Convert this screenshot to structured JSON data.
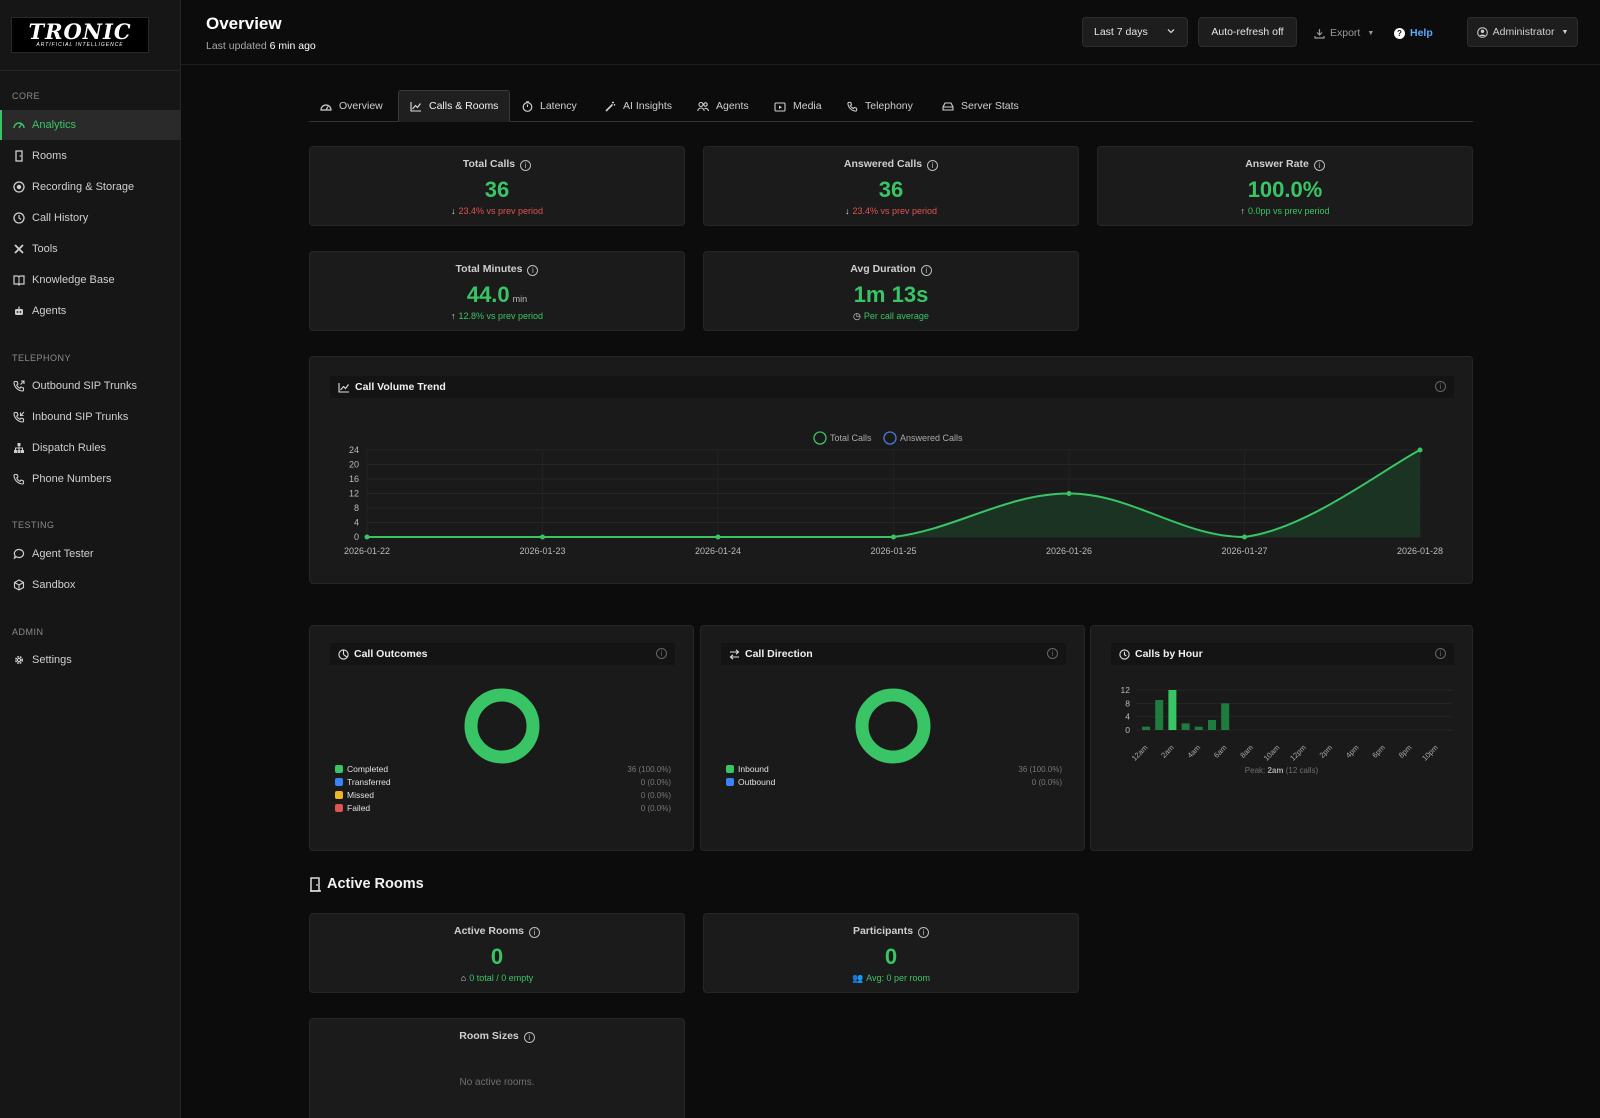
{
  "brand": {
    "logo_main": "TRONIC",
    "logo_sub": "ARTIFICIAL INTELLIGENCE"
  },
  "sidebar": {
    "sections": [
      {
        "label": "CORE",
        "items": [
          {
            "label": "Analytics",
            "icon": "dashboard-icon",
            "active": true
          },
          {
            "label": "Rooms",
            "icon": "door-icon"
          },
          {
            "label": "Recording & Storage",
            "icon": "record-icon"
          },
          {
            "label": "Call History",
            "icon": "clock-icon"
          },
          {
            "label": "Tools",
            "icon": "tools-icon"
          },
          {
            "label": "Knowledge Base",
            "icon": "book-icon"
          },
          {
            "label": "Agents",
            "icon": "robot-icon"
          }
        ]
      },
      {
        "label": "TELEPHONY",
        "items": [
          {
            "label": "Outbound SIP Trunks",
            "icon": "phone-outgoing-icon"
          },
          {
            "label": "Inbound SIP Trunks",
            "icon": "phone-incoming-icon"
          },
          {
            "label": "Dispatch Rules",
            "icon": "hierarchy-icon"
          },
          {
            "label": "Phone Numbers",
            "icon": "phone-icon"
          }
        ]
      },
      {
        "label": "TESTING",
        "items": [
          {
            "label": "Agent Tester",
            "icon": "chat-icon"
          },
          {
            "label": "Sandbox",
            "icon": "box-icon"
          }
        ]
      },
      {
        "label": "ADMIN",
        "items": [
          {
            "label": "Settings",
            "icon": "gear-icon"
          }
        ]
      }
    ]
  },
  "header": {
    "title": "Overview",
    "last_updated_prefix": "Last updated ",
    "last_updated_value": "6 min ago",
    "range_label": "Last 7 days",
    "autorefresh_label": "Auto-refresh off",
    "export_label": "Export",
    "help_label": "Help",
    "user_label": "Administrator"
  },
  "tabs": [
    {
      "label": "Overview",
      "icon": "gauge-icon"
    },
    {
      "label": "Calls & Rooms",
      "icon": "chart-line-icon",
      "active": true
    },
    {
      "label": "Latency",
      "icon": "stopwatch-icon"
    },
    {
      "label": "AI Insights",
      "icon": "magic-wand-icon"
    },
    {
      "label": "Agents",
      "icon": "people-icon"
    },
    {
      "label": "Media",
      "icon": "media-icon"
    },
    {
      "label": "Telephony",
      "icon": "phone-icon"
    },
    {
      "label": "Server Stats",
      "icon": "server-icon"
    }
  ],
  "stats": {
    "total_calls": {
      "title": "Total Calls",
      "value": "36",
      "change": "23.4% vs prev period",
      "direction": "down"
    },
    "answered_calls": {
      "title": "Answered Calls",
      "value": "36",
      "change": "23.4% vs prev period",
      "direction": "down"
    },
    "answer_rate": {
      "title": "Answer Rate",
      "value": "100.0%",
      "change": "0.0pp vs prev period",
      "direction": "up"
    },
    "total_minutes": {
      "title": "Total Minutes",
      "value": "44.0",
      "unit": "min",
      "change": "12.8% vs prev period",
      "direction": "up"
    },
    "avg_duration": {
      "title": "Avg Duration",
      "value": "1m 13s",
      "sub": "Per call average"
    }
  },
  "volume_panel": {
    "title": "Call Volume Trend",
    "chart_data": {
      "type": "area",
      "x": [
        "2026-01-22",
        "2026-01-23",
        "2026-01-24",
        "2026-01-25",
        "2026-01-26",
        "2026-01-27",
        "2026-01-28"
      ],
      "series": [
        {
          "name": "Total Calls",
          "values": [
            0,
            0,
            0,
            0,
            12,
            0,
            24
          ]
        },
        {
          "name": "Answered Calls",
          "values": [
            0,
            0,
            0,
            0,
            12,
            0,
            24
          ]
        }
      ],
      "yticks": [
        "24",
        "20",
        "16",
        "12",
        "8",
        "4",
        "0"
      ],
      "ylim": [
        0,
        24
      ],
      "legend_position": "top-center",
      "colors": {
        "total": "#39c565",
        "answered": "#4a7bd6"
      }
    }
  },
  "outcomes_panel": {
    "title": "Call Outcomes",
    "chart_data": {
      "type": "pie",
      "labels": [
        "Completed",
        "Transferred",
        "Missed",
        "Failed"
      ],
      "values": [
        36,
        0,
        0,
        0
      ],
      "value_labels": [
        "36 (100.0%)",
        "0 (0.0%)",
        "0 (0.0%)",
        "0 (0.0%)"
      ],
      "colors": [
        "#39c565",
        "#3b82f6",
        "#f0b429",
        "#e05353"
      ]
    }
  },
  "direction_panel": {
    "title": "Call Direction",
    "chart_data": {
      "type": "pie",
      "labels": [
        "Inbound",
        "Outbound"
      ],
      "values": [
        36,
        0
      ],
      "value_labels": [
        "36 (100.0%)",
        "0 (0.0%)"
      ],
      "colors": [
        "#39c565",
        "#3b82f6"
      ]
    }
  },
  "hour_panel": {
    "title": "Calls by Hour",
    "peak_prefix": "Peak: ",
    "peak_value": "2am",
    "peak_suffix": " (12 calls)",
    "chart_data": {
      "type": "bar",
      "categories": [
        "12am",
        "1am",
        "2am",
        "3am",
        "4am",
        "5am",
        "6am",
        "7am"
      ],
      "values": [
        1,
        9,
        12,
        2,
        1,
        3,
        8,
        0
      ],
      "tick_labels": [
        "12am",
        "2am",
        "4am",
        "6am",
        "8am",
        "10am",
        "12pm",
        "2pm",
        "4pm",
        "6pm",
        "8pm",
        "10pm"
      ],
      "yticks": [
        "12",
        "8",
        "4",
        "0"
      ],
      "ylim": [
        0,
        12
      ],
      "colors": {
        "bar": "#1e7d3e",
        "peak": "#39c565"
      }
    }
  },
  "rooms": {
    "section_title": "Active Rooms",
    "active_rooms": {
      "title": "Active Rooms",
      "value": "0",
      "sub": "0 total / 0 empty"
    },
    "participants": {
      "title": "Participants",
      "value": "0",
      "sub": "Avg: 0 per room"
    },
    "room_sizes": {
      "title": "Room Sizes",
      "empty": "No active rooms."
    }
  }
}
